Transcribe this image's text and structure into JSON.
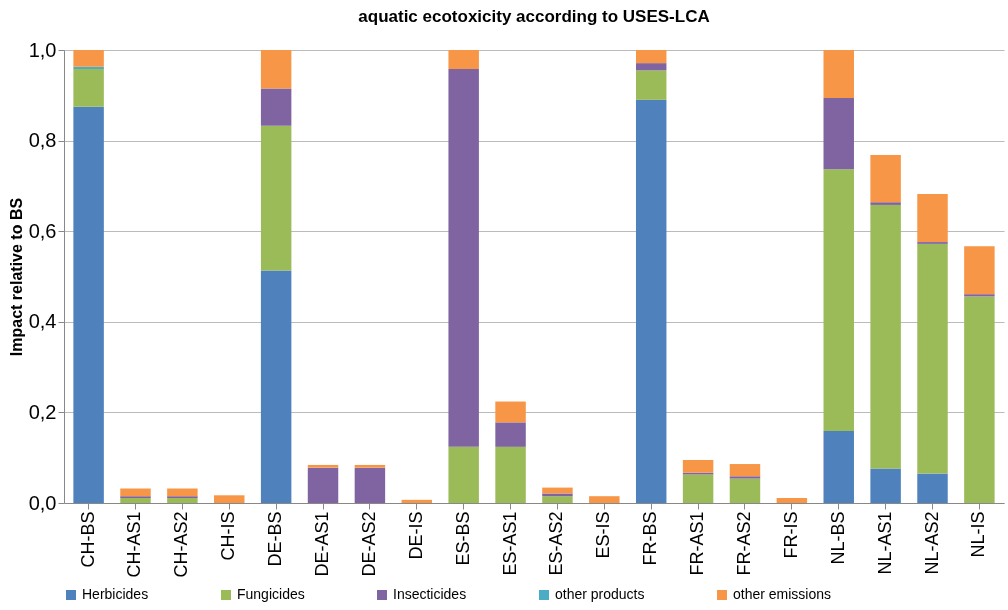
{
  "chart_data": {
    "type": "bar",
    "stacked": true,
    "title": "aquatic ecotoxicity according to USES-LCA",
    "ylabel": "Impact relative to BS",
    "categories": [
      "CH-BS",
      "CH-AS1",
      "CH-AS2",
      "CH-IS",
      "DE-BS",
      "DE-AS1",
      "DE-AS2",
      "DE-IS",
      "ES-BS",
      "ES-AS1",
      "ES-AS2",
      "ES-IS",
      "FR-BS",
      "FR-AS1",
      "FR-AS2",
      "FR-IS",
      "NL-BS",
      "NL-AS1",
      "NL-AS2",
      "NL-IS"
    ],
    "series": [
      {
        "name": "Herbicides",
        "color": "#4f81bd",
        "values": [
          0.875,
          0,
          0,
          0,
          0.513,
          0,
          0,
          0,
          0,
          0,
          0,
          0,
          0.89,
          0,
          0,
          0,
          0.159,
          0.076,
          0.065,
          0
        ]
      },
      {
        "name": "Fungicides",
        "color": "#9bbb59",
        "values": [
          0.083,
          0.011,
          0.011,
          0,
          0.32,
          0,
          0,
          0,
          0.124,
          0.124,
          0.015,
          0,
          0.065,
          0.063,
          0.054,
          0,
          0.578,
          0.582,
          0.507,
          0.456
        ]
      },
      {
        "name": "Insecticides",
        "color": "#8064a2",
        "values": [
          0,
          0.004,
          0.004,
          0,
          0.082,
          0.078,
          0.078,
          0,
          0.834,
          0.054,
          0.006,
          0,
          0.016,
          0.004,
          0.005,
          0,
          0.157,
          0.006,
          0.004,
          0.005
        ]
      },
      {
        "name": "other products",
        "color": "#4bacc6",
        "values": [
          0.005,
          0,
          0,
          0,
          0,
          0,
          0,
          0,
          0,
          0,
          0,
          0,
          0,
          0,
          0,
          0,
          0,
          0,
          0,
          0
        ]
      },
      {
        "name": "other emissions",
        "color": "#f79646",
        "values": [
          0.037,
          0.017,
          0.017,
          0.017,
          0.085,
          0.006,
          0.006,
          0.007,
          0.042,
          0.046,
          0.013,
          0.015,
          0.029,
          0.028,
          0.027,
          0.011,
          0.106,
          0.104,
          0.106,
          0.106
        ]
      }
    ],
    "ylim": [
      0,
      1
    ],
    "yticks": [
      {
        "value": 0,
        "label": "0,0"
      },
      {
        "value": 0.2,
        "label": "0,2"
      },
      {
        "value": 0.4,
        "label": "0,4"
      },
      {
        "value": 0.6,
        "label": "0,6"
      },
      {
        "value": 0.8,
        "label": "0,8"
      },
      {
        "value": 1,
        "label": "1,0"
      }
    ],
    "grid": "y",
    "legend": "bottom"
  }
}
